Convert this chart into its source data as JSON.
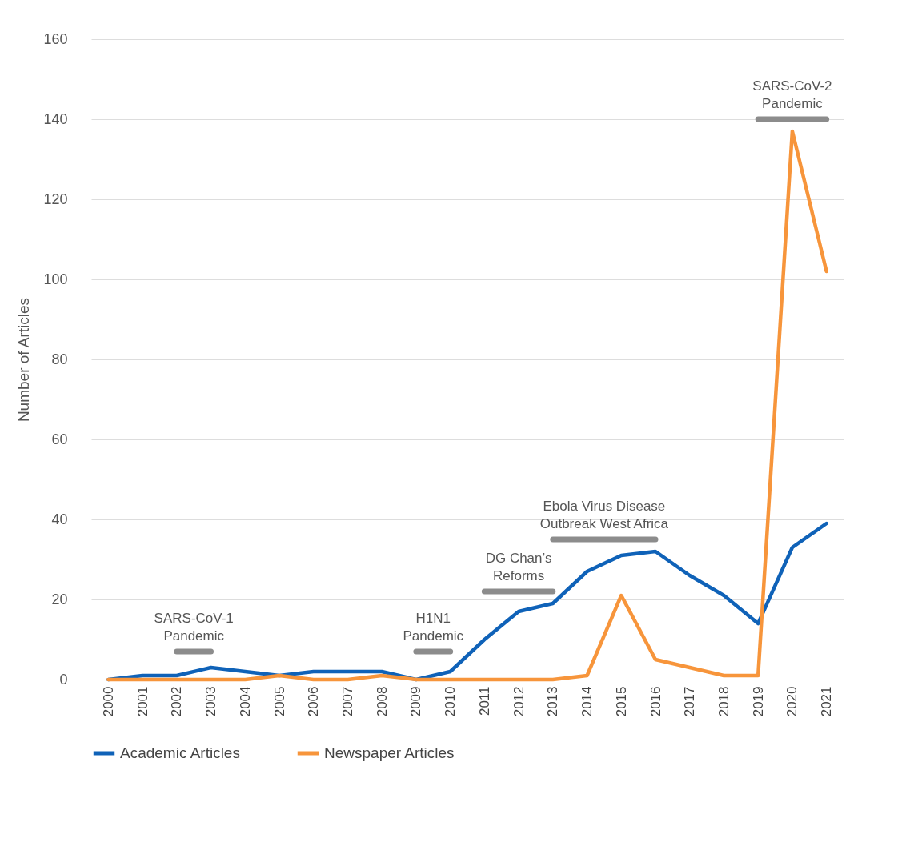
{
  "chart_data": {
    "type": "line",
    "ylabel": "Number of Articles",
    "x": [
      2000,
      2001,
      2002,
      2003,
      2004,
      2005,
      2006,
      2007,
      2008,
      2009,
      2010,
      2011,
      2012,
      2013,
      2014,
      2015,
      2016,
      2017,
      2018,
      2019,
      2020,
      2021
    ],
    "xlim": [
      1999.5,
      2021.5
    ],
    "xticks": [
      2000,
      2001,
      2002,
      2003,
      2004,
      2005,
      2006,
      2007,
      2008,
      2009,
      2010,
      2011,
      2012,
      2013,
      2014,
      2015,
      2016,
      2017,
      2018,
      2019,
      2020,
      2021
    ],
    "ylim": [
      0,
      160
    ],
    "yticks": [
      0,
      20,
      40,
      60,
      80,
      100,
      120,
      140,
      160
    ],
    "grid": "y",
    "legend": "bottom",
    "series": [
      {
        "name": "Academic Articles",
        "color": "#0f62b8",
        "values": [
          0,
          1,
          1,
          3,
          2,
          1,
          2,
          2,
          2,
          0,
          2,
          10,
          17,
          19,
          27,
          31,
          32,
          26,
          21,
          14,
          33,
          39
        ]
      },
      {
        "name": "Newspaper Articles",
        "color": "#f7953b",
        "values": [
          0,
          0,
          0,
          0,
          0,
          1,
          0,
          0,
          1,
          0,
          0,
          0,
          0,
          0,
          1,
          21,
          5,
          3,
          1,
          1,
          137,
          102
        ]
      },
      {
        "type": "line",
        "color": "#8c8c8c",
        "x": [
          2002,
          2003
        ],
        "values": [
          7,
          7
        ]
      },
      {
        "type": "line",
        "color": "#8c8c8c",
        "x": [
          2009,
          2010
        ],
        "values": [
          7,
          7
        ]
      },
      {
        "type": "line",
        "color": "#8c8c8c",
        "x": [
          2011,
          2013
        ],
        "values": [
          22,
          22
        ]
      },
      {
        "type": "line",
        "color": "#8c8c8c",
        "x": [
          2013,
          2016
        ],
        "values": [
          35,
          35
        ]
      },
      {
        "type": "line",
        "color": "#8c8c8c",
        "x": [
          2019,
          2021
        ],
        "values": [
          140,
          140
        ]
      }
    ],
    "annotations": [
      {
        "text": "SARS-CoV-1\nPandemic",
        "x": 2002.5,
        "y": 7
      },
      {
        "text": "H1N1\nPandemic",
        "x": 2009.5,
        "y": 7
      },
      {
        "text": "DG Chan’s\nReforms",
        "x": 2012,
        "y": 22
      },
      {
        "text": "Ebola Virus Disease\nOutbreak West Africa",
        "x": 2014.5,
        "y": 35
      },
      {
        "text": "SARS-CoV-2\nPandemic",
        "x": 2020,
        "y": 140
      }
    ]
  }
}
